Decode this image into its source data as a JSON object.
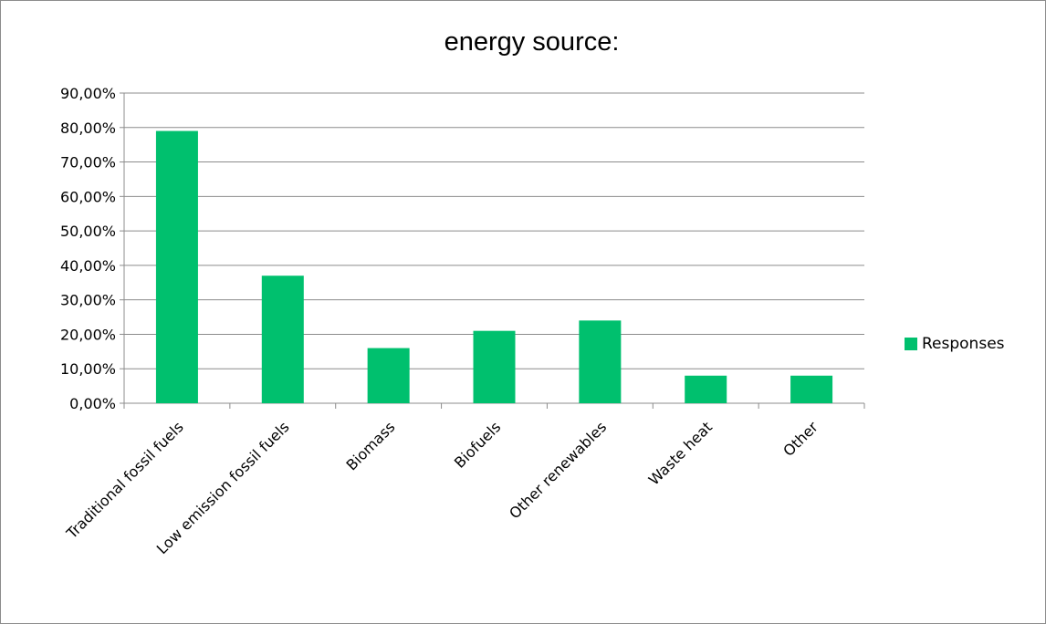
{
  "chart_data": {
    "type": "bar",
    "title": "energy source:",
    "xlabel": "",
    "ylabel": "",
    "categories": [
      "Traditional fossil fuels",
      "Low emission fossil fuels",
      "Biomass",
      "Biofuels",
      "Other renewables",
      "Waste heat",
      "Other"
    ],
    "series": [
      {
        "name": "Responses",
        "values": [
          0.79,
          0.37,
          0.16,
          0.21,
          0.24,
          0.08,
          0.08
        ],
        "color": "#00c06e"
      }
    ],
    "y_ticks": [
      "0,00%",
      "10,00%",
      "20,00%",
      "30,00%",
      "40,00%",
      "50,00%",
      "60,00%",
      "70,00%",
      "80,00%",
      "90,00%"
    ],
    "ylim": [
      0,
      0.9
    ],
    "y_format": "percent",
    "grid": true,
    "legend_position": "right"
  }
}
